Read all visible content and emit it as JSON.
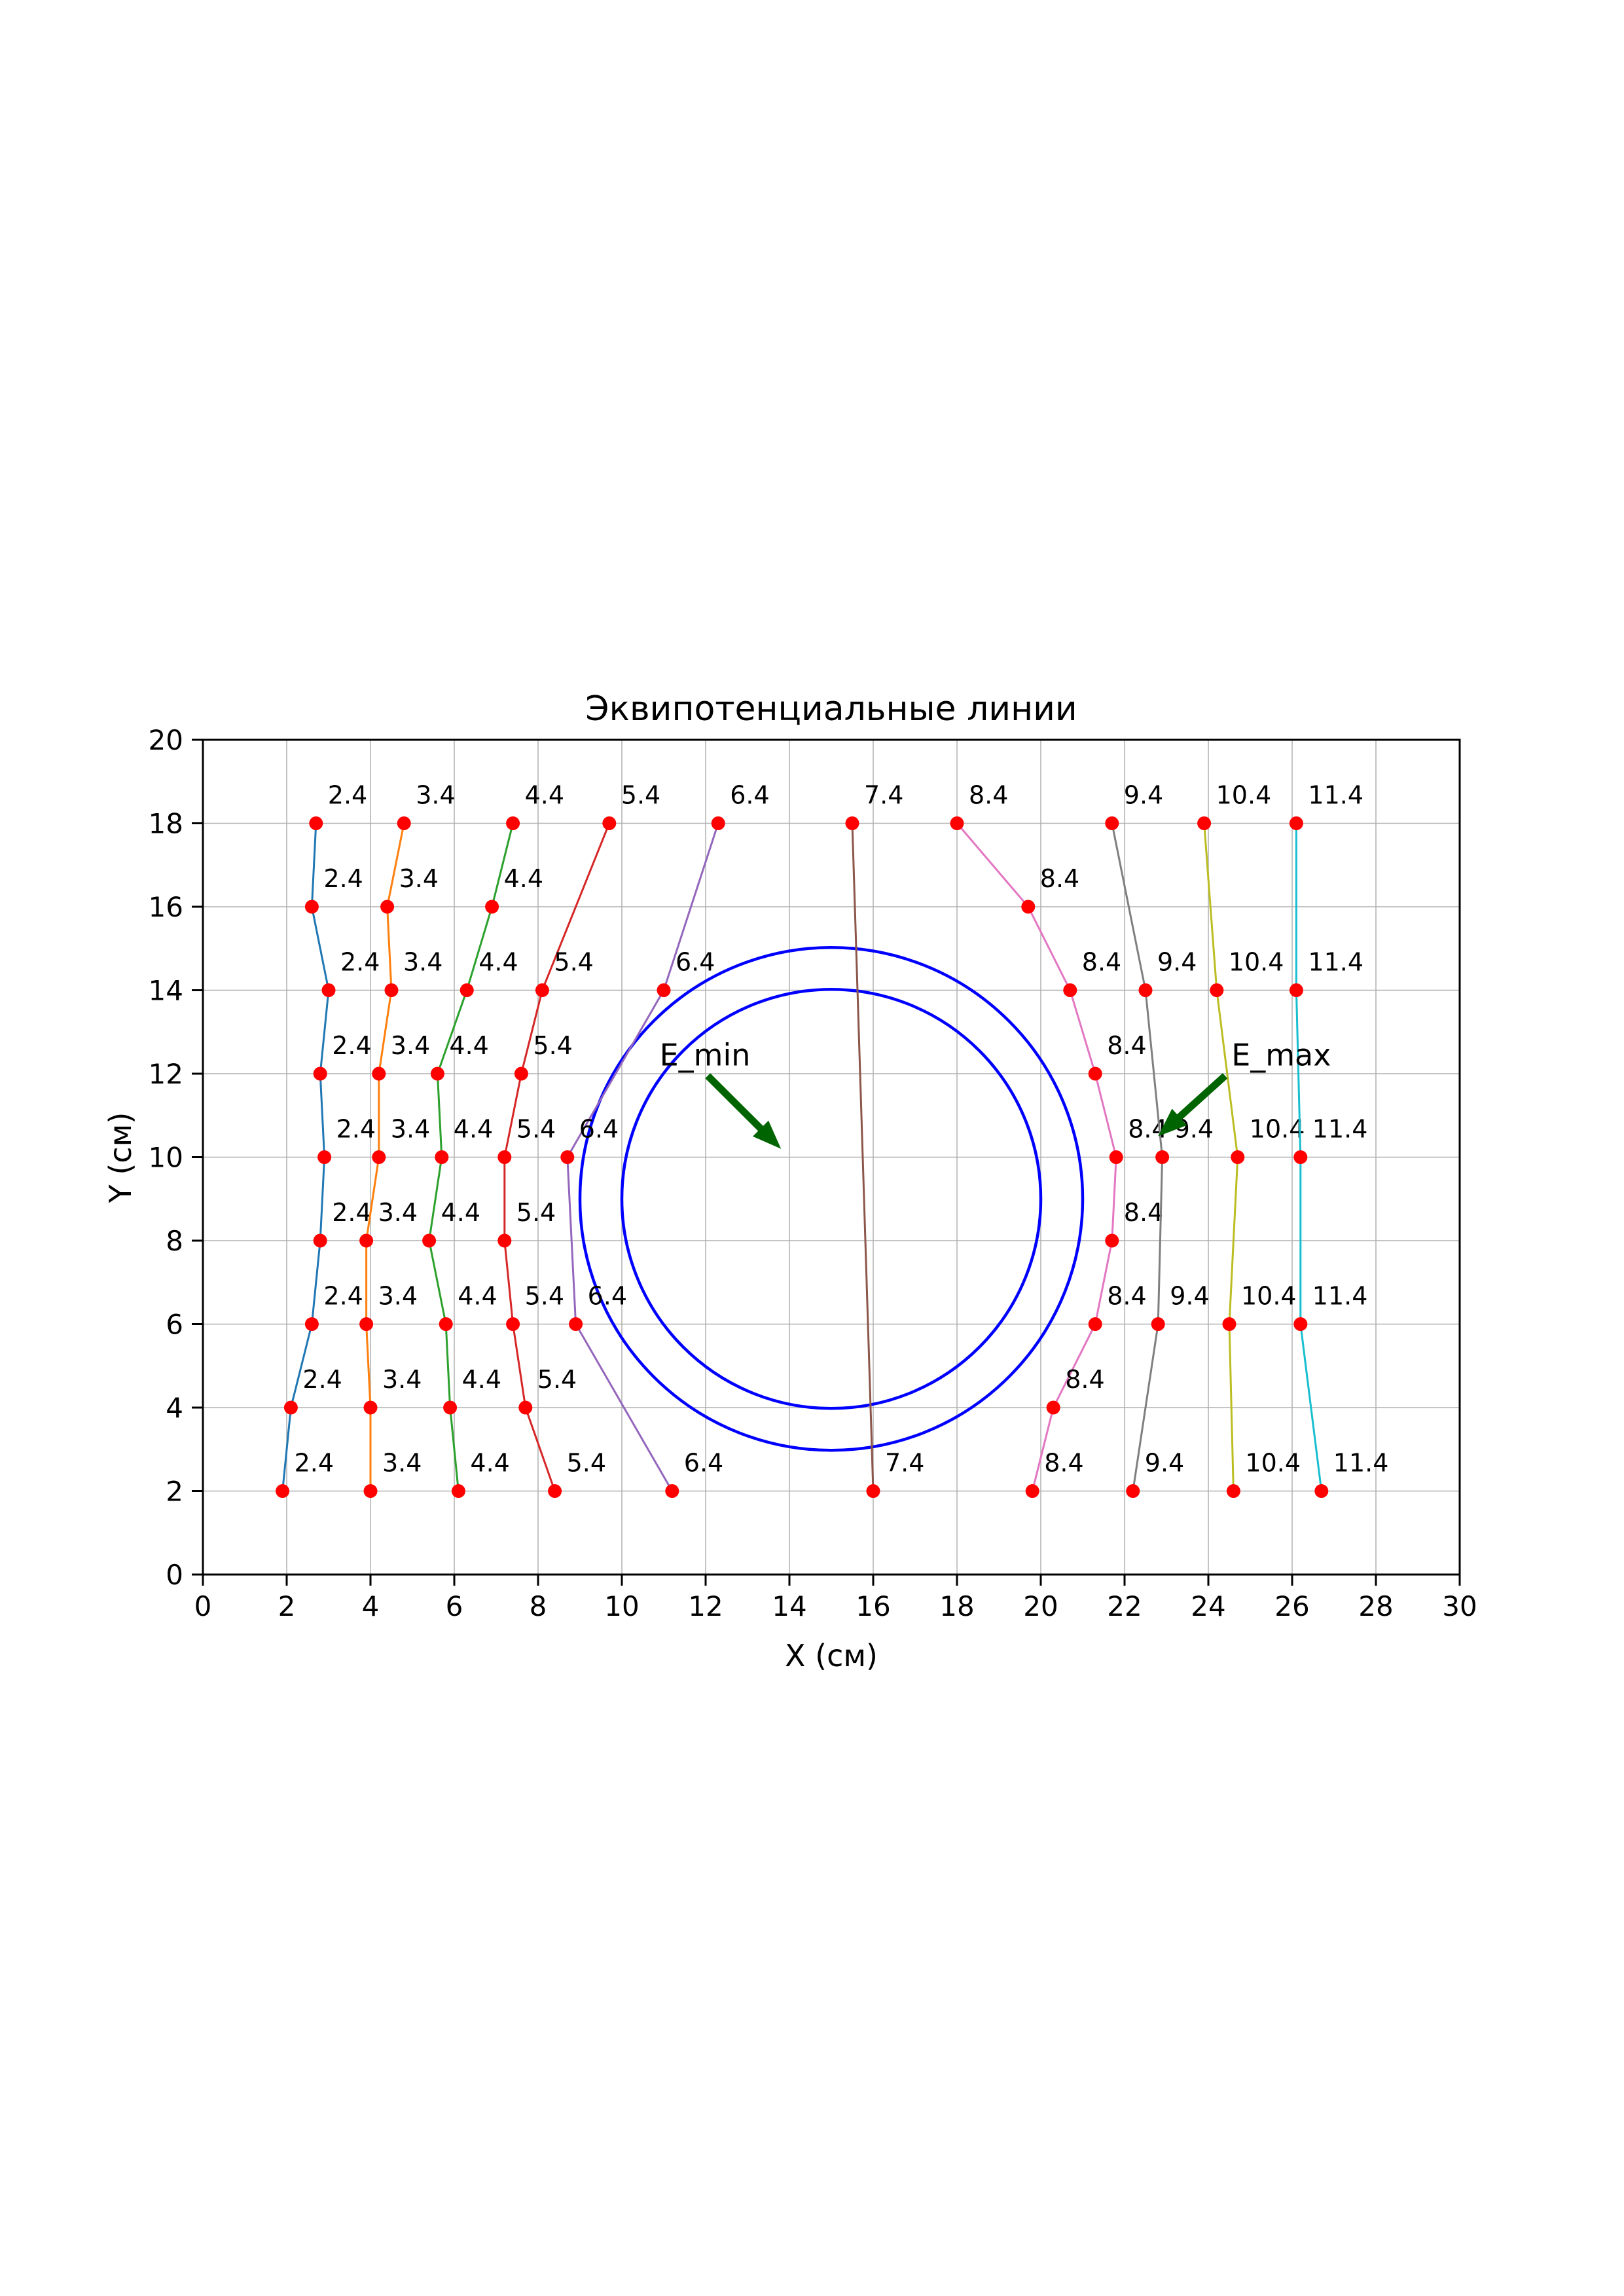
{
  "chart_data": {
    "type": "line",
    "title": "Эквипотенциальные линии",
    "xlabel": "X (см)",
    "ylabel": "Y (см)",
    "xlim": [
      0,
      30
    ],
    "ylim": [
      0,
      20
    ],
    "xticks": [
      0,
      2,
      4,
      6,
      8,
      10,
      12,
      14,
      16,
      18,
      20,
      22,
      24,
      26,
      28,
      30
    ],
    "yticks": [
      0,
      2,
      4,
      6,
      8,
      10,
      12,
      14,
      16,
      18,
      20
    ],
    "grid": true,
    "grid_color": "#b0b0b0",
    "axis_color": "#000000",
    "point_color": "#ff0000",
    "point_label_color": "#000000",
    "legend": "none",
    "series_note": "each red data point is labeled with the potential value of its line",
    "series": [
      {
        "name": "2.4",
        "color": "#1f77b4",
        "points": [
          [
            2.7,
            18
          ],
          [
            2.6,
            16
          ],
          [
            3.0,
            14
          ],
          [
            2.8,
            12
          ],
          [
            2.9,
            10
          ],
          [
            2.8,
            8
          ],
          [
            2.6,
            6
          ],
          [
            2.1,
            4
          ],
          [
            1.9,
            2
          ]
        ]
      },
      {
        "name": "3.4",
        "color": "#ff7f0e",
        "points": [
          [
            4.8,
            18
          ],
          [
            4.4,
            16
          ],
          [
            4.5,
            14
          ],
          [
            4.2,
            12
          ],
          [
            4.2,
            10
          ],
          [
            3.9,
            8
          ],
          [
            3.9,
            6
          ],
          [
            4.0,
            4
          ],
          [
            4.0,
            2
          ]
        ]
      },
      {
        "name": "4.4",
        "color": "#2ca02c",
        "points": [
          [
            7.4,
            18
          ],
          [
            6.9,
            16
          ],
          [
            6.3,
            14
          ],
          [
            5.6,
            12
          ],
          [
            5.7,
            10
          ],
          [
            5.4,
            8
          ],
          [
            5.8,
            6
          ],
          [
            5.9,
            4
          ],
          [
            6.1,
            2
          ]
        ]
      },
      {
        "name": "5.4",
        "color": "#d62728",
        "points": [
          [
            9.7,
            18
          ],
          [
            8.1,
            14
          ],
          [
            7.6,
            12
          ],
          [
            7.2,
            10
          ],
          [
            7.2,
            8
          ],
          [
            7.4,
            6
          ],
          [
            7.7,
            4
          ],
          [
            8.4,
            2
          ]
        ]
      },
      {
        "name": "6.4",
        "color": "#9467bd",
        "points": [
          [
            12.3,
            18
          ],
          [
            11.0,
            14
          ],
          [
            8.7,
            10
          ],
          [
            8.9,
            6
          ],
          [
            11.2,
            2
          ]
        ]
      },
      {
        "name": "7.4",
        "color": "#8c564b",
        "points": [
          [
            15.5,
            18
          ],
          [
            16.0,
            2
          ]
        ]
      },
      {
        "name": "8.4",
        "color": "#e377c2",
        "points": [
          [
            18.0,
            18
          ],
          [
            19.7,
            16
          ],
          [
            20.7,
            14
          ],
          [
            21.3,
            12
          ],
          [
            21.8,
            10
          ],
          [
            21.7,
            8
          ],
          [
            21.3,
            6
          ],
          [
            20.3,
            4
          ],
          [
            19.8,
            2
          ]
        ]
      },
      {
        "name": "9.4",
        "color": "#7f7f7f",
        "points": [
          [
            21.7,
            18
          ],
          [
            22.5,
            14
          ],
          [
            22.9,
            10
          ],
          [
            22.8,
            6
          ],
          [
            22.2,
            2
          ]
        ]
      },
      {
        "name": "10.4",
        "color": "#bcbd22",
        "points": [
          [
            23.9,
            18
          ],
          [
            24.2,
            14
          ],
          [
            24.7,
            10
          ],
          [
            24.5,
            6
          ],
          [
            24.6,
            2
          ]
        ]
      },
      {
        "name": "11.4",
        "color": "#17becf",
        "points": [
          [
            26.1,
            18
          ],
          [
            26.1,
            14
          ],
          [
            26.2,
            10
          ],
          [
            26.2,
            6
          ],
          [
            26.7,
            2
          ]
        ]
      }
    ],
    "circles": [
      {
        "name": "outer",
        "cx": 15,
        "cy": 9,
        "r": 6,
        "color": "#0000ff"
      },
      {
        "name": "inner",
        "cx": 15,
        "cy": 9,
        "r": 5,
        "color": "#0000ff"
      }
    ],
    "annotations": [
      {
        "text": "E_min",
        "color": "#006400",
        "text_xy": [
          10.9,
          12.2
        ],
        "arrow_from": [
          12.05,
          11.95
        ],
        "arrow_to": [
          13.8,
          10.2
        ]
      },
      {
        "text": "E_max",
        "color": "#006400",
        "text_xy": [
          24.55,
          12.2
        ],
        "arrow_from": [
          24.4,
          11.95
        ],
        "arrow_to": [
          22.8,
          10.5
        ]
      }
    ]
  }
}
